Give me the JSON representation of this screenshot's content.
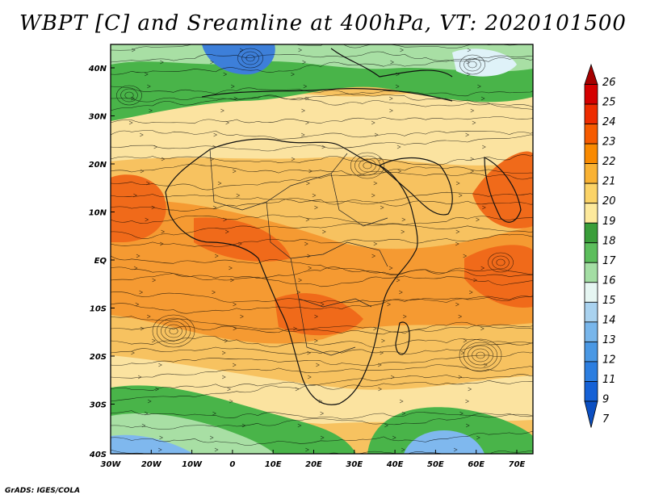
{
  "title": "WBPT [C] and Sreamline at 400hPa, VT: 2020101500",
  "credit": "GrADS: IGES/COLA",
  "lat_labels": [
    "40N",
    "30N",
    "20N",
    "10N",
    "EQ",
    "10S",
    "20S",
    "30S",
    "40S"
  ],
  "lon_labels": [
    "30W",
    "20W",
    "10W",
    "0",
    "10E",
    "20E",
    "30E",
    "40E",
    "50E",
    "60E",
    "70E"
  ],
  "colorbar": {
    "labels": [
      "26",
      "25",
      "24",
      "23",
      "22",
      "21",
      "20",
      "19",
      "18",
      "17",
      "16",
      "15",
      "14",
      "13",
      "12",
      "11",
      "9",
      "7"
    ],
    "colors": [
      "#a50000",
      "#d40000",
      "#ee2c00",
      "#f65b00",
      "#f98a00",
      "#f9b233",
      "#fbd367",
      "#fde99c",
      "#3a9e3a",
      "#5cbe5c",
      "#a4dea4",
      "#e6f6f2",
      "#a9d2ef",
      "#78b6eb",
      "#4a98e4",
      "#2c7ee0",
      "#1561d6",
      "#0b4fc2"
    ]
  },
  "map_colors": {
    "warm": "#f7c260",
    "orange": "#f59a32",
    "hot": "#f06a1a",
    "pale": "#fbe3a0",
    "green": "#49b449",
    "lightgreen": "#a8dfa4",
    "blue": "#7fb8ee",
    "deepblue": "#3d7fd9",
    "cold": "#dff2f8"
  }
}
